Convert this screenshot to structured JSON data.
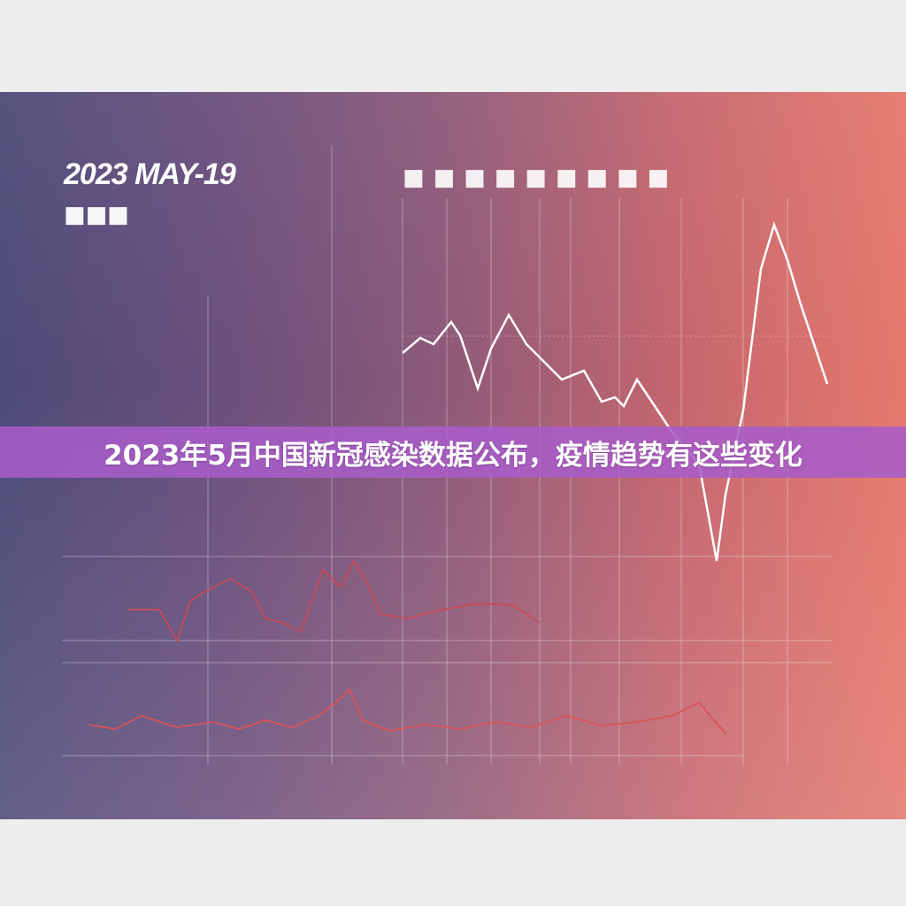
{
  "image": {
    "date_label": "2023 MAY-19",
    "sub_label": "■■■",
    "heading": "■■■■■■■■■",
    "banner_title": "2023年5月中国新冠感染数据公布，疫情趋势有这些变化",
    "colors": {
      "left": "#4d4a78",
      "right": "#e5786c",
      "banner": "#a85cc8"
    }
  }
}
